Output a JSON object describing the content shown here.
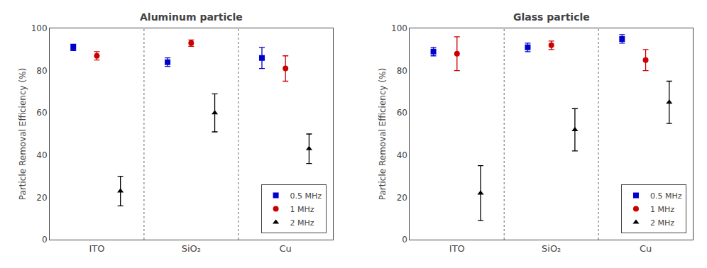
{
  "chart_data": [
    {
      "type": "scatter",
      "title": "Aluminum particle",
      "ylabel": "Particle Removal Efficiency (%)",
      "categories": [
        "ITO",
        "SiO₂",
        "Cu"
      ],
      "series": [
        {
          "name": "0.5 MHz",
          "color": "#0000cc",
          "marker": "square",
          "values": [
            91,
            84,
            86
          ],
          "error": [
            1.5,
            2,
            5
          ]
        },
        {
          "name": "1 MHz",
          "color": "#cc0000",
          "marker": "circle",
          "values": [
            87,
            93,
            81
          ],
          "error": [
            2,
            1.5,
            6
          ]
        },
        {
          "name": "2 MHz",
          "color": "#000000",
          "marker": "triangle-up",
          "values": [
            23,
            60,
            43
          ],
          "error": [
            7,
            9,
            7
          ]
        }
      ],
      "ylim": [
        0,
        100
      ],
      "yticks": [
        0,
        20,
        40,
        60,
        80,
        100
      ],
      "grid": false,
      "legend": "lower right"
    },
    {
      "type": "scatter",
      "title": "Glass particle",
      "ylabel": "Particle Removal Efficiency (%)",
      "categories": [
        "ITO",
        "SiO₂",
        "Cu"
      ],
      "series": [
        {
          "name": "0.5 MHz",
          "color": "#0000cc",
          "marker": "square",
          "values": [
            89,
            91,
            95
          ],
          "error": [
            2,
            2,
            2
          ]
        },
        {
          "name": "1 MHz",
          "color": "#cc0000",
          "marker": "circle",
          "values": [
            88,
            92,
            85
          ],
          "error": [
            8,
            2,
            5
          ]
        },
        {
          "name": "2 MHz",
          "color": "#000000",
          "marker": "triangle-up",
          "values": [
            22,
            52,
            65
          ],
          "error": [
            13,
            10,
            10
          ]
        }
      ],
      "ylim": [
        0,
        100
      ],
      "yticks": [
        0,
        20,
        40,
        60,
        80,
        100
      ],
      "grid": false,
      "legend": "lower right"
    }
  ]
}
